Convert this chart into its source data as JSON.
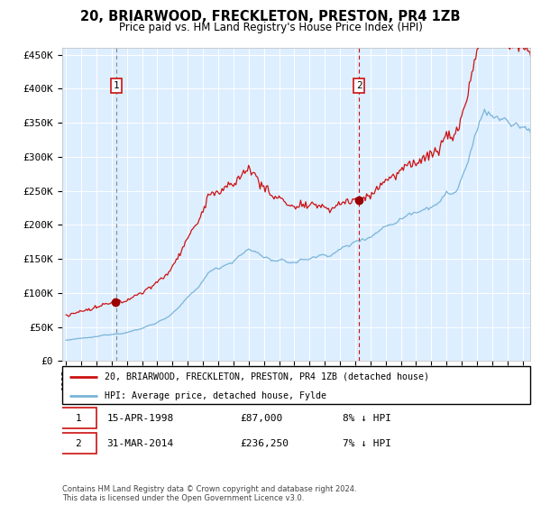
{
  "title": "20, BRIARWOOD, FRECKLETON, PRESTON, PR4 1ZB",
  "subtitle": "Price paid vs. HM Land Registry's House Price Index (HPI)",
  "bg_color": "#ddeeff",
  "hpi_color": "#7ab5d9",
  "price_color": "#cc1111",
  "marker_color": "#990000",
  "vline1_color": "#888888",
  "vline2_color": "#cc1111",
  "ylim": [
    0,
    460000
  ],
  "yticks": [
    0,
    50000,
    100000,
    150000,
    200000,
    250000,
    300000,
    350000,
    400000,
    450000
  ],
  "sale1_date_num": 1998.29,
  "sale1_price": 87000,
  "sale2_date_num": 2014.25,
  "sale2_price": 236250,
  "legend1": "20, BRIARWOOD, FRECKLETON, PRESTON, PR4 1ZB (detached house)",
  "legend2": "HPI: Average price, detached house, Fylde",
  "annot1_date": "15-APR-1998",
  "annot1_price_str": "£87,000",
  "annot1_hpi_str": "8% ↓ HPI",
  "annot2_date": "31-MAR-2014",
  "annot2_price_str": "£236,250",
  "annot2_hpi_str": "7% ↓ HPI",
  "footer": "Contains HM Land Registry data © Crown copyright and database right 2024.\nThis data is licensed under the Open Government Licence v3.0.",
  "xstart": 1994.75,
  "xend": 2025.5
}
